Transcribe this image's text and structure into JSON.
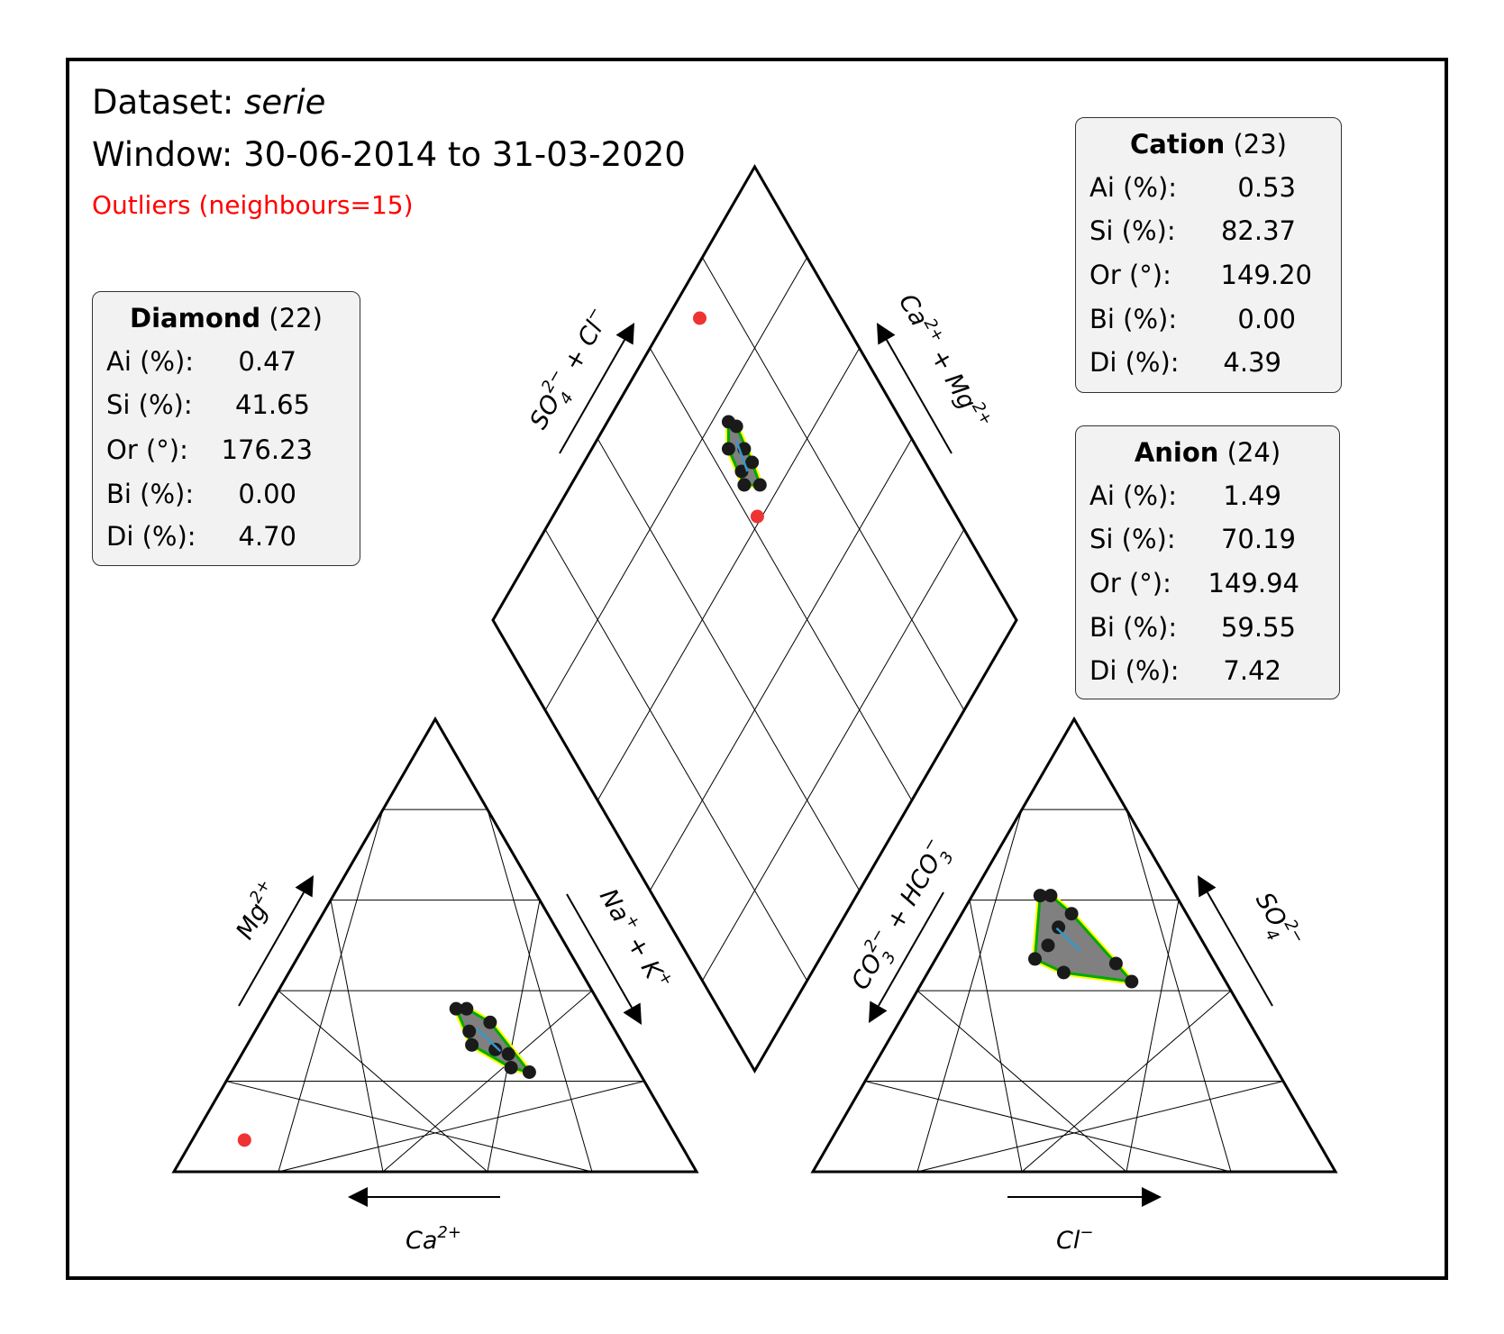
{
  "header": {
    "dataset_label": "Dataset:",
    "dataset_name": "serie",
    "window": "Window: 30-06-2014 to 31-03-2020",
    "outliers": "Outliers (neighbours=15)"
  },
  "stats_boxes": {
    "diamond": {
      "title": "Diamond",
      "count": "(22)",
      "rows": [
        {
          "label": "Ai (%):",
          "value": "0.47"
        },
        {
          "label": "Si (%):",
          "value": "41.65"
        },
        {
          "label": "Or (°):",
          "value": "176.23"
        },
        {
          "label": "Bi (%):",
          "value": "0.00"
        },
        {
          "label": "Di (%):",
          "value": "4.70"
        }
      ]
    },
    "cation": {
      "title": "Cation",
      "count": "(23)",
      "rows": [
        {
          "label": "Ai (%):",
          "value": "0.53"
        },
        {
          "label": "Si (%):",
          "value": "82.37"
        },
        {
          "label": "Or (°):",
          "value": "149.20"
        },
        {
          "label": "Bi (%):",
          "value": "0.00"
        },
        {
          "label": "Di (%):",
          "value": "4.39"
        }
      ]
    },
    "anion": {
      "title": "Anion",
      "count": "(24)",
      "rows": [
        {
          "label": "Ai (%):",
          "value": "1.49"
        },
        {
          "label": "Si (%):",
          "value": "70.19"
        },
        {
          "label": "Or (°):",
          "value": "149.94"
        },
        {
          "label": "Bi (%):",
          "value": "59.55"
        },
        {
          "label": "Di (%):",
          "value": "7.42"
        }
      ]
    }
  },
  "colors": {
    "frame": "#000000",
    "grid": "#000000",
    "points": "#1a1a1a",
    "outlier": "#ee3333",
    "hull": "#808080",
    "hull_edge": "#00aa00",
    "hull_glow": "#ffff00",
    "trend": "#3399cc",
    "box_bg": "#f2f2f2"
  },
  "chart_data": {
    "type": "scatter",
    "subtype": "piper-diagram",
    "axes": {
      "cation_bottom": {
        "label": "Ca",
        "charge": "2+",
        "direction": "left"
      },
      "cation_left": {
        "label": "Mg",
        "charge": "2+",
        "direction": "up"
      },
      "cation_right": {
        "label": "Na",
        "charge": "+",
        "label2": "K",
        "charge2": "+",
        "direction": "down"
      },
      "anion_bottom": {
        "label": "Cl",
        "charge": "−",
        "direction": "right"
      },
      "anion_left": {
        "label": "CO",
        "sub": "3",
        "charge": "2−",
        "label2": "HCO",
        "sub2": "3",
        "charge2": "−",
        "direction": "down"
      },
      "anion_right": {
        "label": "SO",
        "sub": "4",
        "charge": "2−",
        "direction": "up"
      },
      "diamond_left": {
        "label": "SO",
        "sub": "4",
        "charge": "2−",
        "label2": "Cl",
        "charge2": "−",
        "direction": "up"
      },
      "diamond_right": {
        "label": "Ca",
        "charge": "2+",
        "label2": "Mg",
        "charge2": "2+",
        "direction": "up"
      }
    },
    "grid_step_percent": 20,
    "cation": {
      "units": "percent of total (Ca, Mg, Na+K)",
      "points": [
        {
          "Ca": 28,
          "Mg": 36,
          "NaK": 36
        },
        {
          "Ca": 26,
          "Mg": 36,
          "NaK": 38
        },
        {
          "Ca": 23,
          "Mg": 33,
          "NaK": 44
        },
        {
          "Ca": 28,
          "Mg": 31,
          "NaK": 41
        },
        {
          "Ca": 29,
          "Mg": 28,
          "NaK": 43
        },
        {
          "Ca": 25,
          "Mg": 27,
          "NaK": 48
        },
        {
          "Ca": 23,
          "Mg": 26,
          "NaK": 51
        },
        {
          "Ca": 24,
          "Mg": 23,
          "NaK": 53
        },
        {
          "Ca": 21,
          "Mg": 22,
          "NaK": 57
        }
      ],
      "outliers": [
        {
          "Ca": 83,
          "Mg": 7,
          "NaK": 10
        }
      ]
    },
    "anion": {
      "units": "percent of total (CO3+HCO3, SO4, Cl)",
      "points": [
        {
          "CO3HCO3": 26,
          "SO4": 61,
          "Cl": 13
        },
        {
          "CO3HCO3": 24,
          "SO4": 61,
          "Cl": 15
        },
        {
          "CO3HCO3": 22,
          "SO4": 57,
          "Cl": 21
        },
        {
          "CO3HCO3": 26,
          "SO4": 54,
          "Cl": 20
        },
        {
          "CO3HCO3": 30,
          "SO4": 50,
          "Cl": 20
        },
        {
          "CO3HCO3": 34,
          "SO4": 47,
          "Cl": 19
        },
        {
          "CO3HCO3": 30,
          "SO4": 44,
          "Cl": 26
        },
        {
          "CO3HCO3": 19,
          "SO4": 46,
          "Cl": 35
        },
        {
          "CO3HCO3": 18,
          "SO4": 42,
          "Cl": 40
        }
      ],
      "outliers": []
    },
    "diamond": {
      "units": "percent",
      "points": [
        {
          "SO4Cl": 67,
          "CaMg": 77
        },
        {
          "SO4Cl": 68,
          "CaMg": 75
        },
        {
          "SO4Cl": 64,
          "CaMg": 74
        },
        {
          "SO4Cl": 67,
          "CaMg": 71
        },
        {
          "SO4Cl": 64,
          "CaMg": 69
        },
        {
          "SO4Cl": 67,
          "CaMg": 68
        },
        {
          "SO4Cl": 63,
          "CaMg": 67
        },
        {
          "SO4Cl": 66,
          "CaMg": 64
        }
      ],
      "outliers": [
        {
          "SO4Cl": 73,
          "CaMg": 94
        },
        {
          "SO4Cl": 62,
          "CaMg": 61
        }
      ]
    }
  }
}
